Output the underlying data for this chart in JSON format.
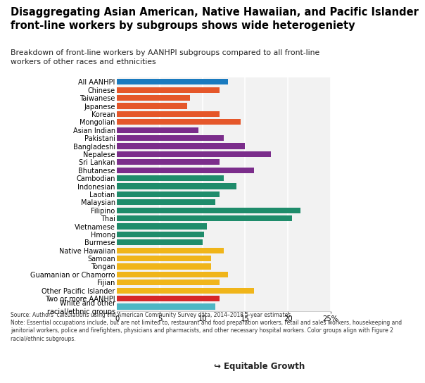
{
  "title": "Disaggregating Asian American, Native Hawaiian, and Pacific Islander\nfront-line workers by subgroups shows wide heterogeniety",
  "subtitle": "Breakdown of front-line workers by AANHPI subgroups compared to all front-line\nworkers of other races and ethnicities",
  "categories": [
    "All AANHPI",
    "Chinese",
    "Taiwanese",
    "Japanese",
    "Korean",
    "Mongolian",
    "Asian Indian",
    "Pakistani",
    "Bangladeshi",
    "Nepalese",
    "Sri Lankan",
    "Bhutanese",
    "Cambodian",
    "Indonesian",
    "Laotian",
    "Malaysian",
    "Filipino",
    "Thai",
    "Vietnamese",
    "Hmong",
    "Burmese",
    "Native Hawaiian",
    "Samoan",
    "Tongan",
    "Guamanian or Chamorro",
    "Fijian",
    "Other Pacific Islander",
    "Two or more AANHPI",
    "White and other\nracial/ethnic groups"
  ],
  "values": [
    13.0,
    12.0,
    8.5,
    8.2,
    12.0,
    14.5,
    9.5,
    12.5,
    15.0,
    18.0,
    12.0,
    16.0,
    12.5,
    14.0,
    12.0,
    11.5,
    21.5,
    20.5,
    10.5,
    10.2,
    10.0,
    12.5,
    11.0,
    11.0,
    13.0,
    12.0,
    16.0,
    12.0,
    11.5
  ],
  "colors": [
    "#1a7abf",
    "#e5572a",
    "#e5572a",
    "#e5572a",
    "#e5572a",
    "#e5572a",
    "#7b2d8b",
    "#7b2d8b",
    "#7b2d8b",
    "#7b2d8b",
    "#7b2d8b",
    "#7b2d8b",
    "#1f8c6b",
    "#1f8c6b",
    "#1f8c6b",
    "#1f8c6b",
    "#1f8c6b",
    "#1f8c6b",
    "#1f8c6b",
    "#1f8c6b",
    "#1f8c6b",
    "#f0b51a",
    "#f0b51a",
    "#f0b51a",
    "#f0b51a",
    "#f0b51a",
    "#f0b51a",
    "#d62728",
    "#4db6c4"
  ],
  "xlim": [
    0,
    25
  ],
  "xticks": [
    0,
    5,
    10,
    15,
    20,
    25
  ],
  "xticklabels": [
    "0",
    "5",
    "10",
    "15",
    "20",
    "25%"
  ],
  "bg_color": "#ebebeb",
  "chart_bg": "#f2f2f2",
  "source_text": "Source: Authors' calculations using the American Community Survey data, 2014–2018 5-year estimates.\nNote: Essential occupations include, but are not limited to, restaurant and food preparation workers, retail and sales workers, housekeeping and\njanitorial workers, police and firefighters, physicians and pharmacists, and other necessary hospital workers. Color groups align with Figure 2\nracial/ethnic subgroups.",
  "logo_text": "↪ Equitable Growth",
  "title_fontsize": 10.5,
  "subtitle_fontsize": 7.8,
  "bar_label_fontsize": 7.0,
  "tick_fontsize": 7.2,
  "note_fontsize": 5.5
}
